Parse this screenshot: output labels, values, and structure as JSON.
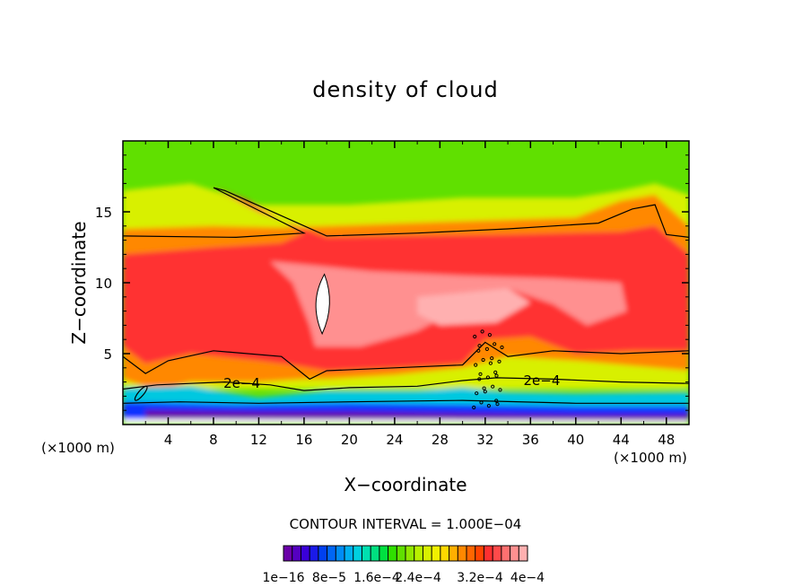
{
  "chart_data": {
    "type": "heatmap",
    "title": "density of cloud",
    "xlabel": "X−coordinate",
    "ylabel": "Z−coordinate",
    "x_unit_left": "(×1000 m)",
    "x_unit_right": "(×1000 m)",
    "xlim": [
      0,
      50
    ],
    "ylim": [
      0,
      20
    ],
    "x_ticks": [
      4,
      8,
      12,
      16,
      20,
      24,
      28,
      32,
      36,
      40,
      44,
      48
    ],
    "y_ticks": [
      5,
      10,
      15
    ],
    "x_tick_labels": [
      "4",
      "8",
      "12",
      "16",
      "20",
      "24",
      "28",
      "32",
      "36",
      "40",
      "44",
      "48"
    ],
    "y_tick_labels": [
      "5",
      "10",
      "15"
    ],
    "contour_interval": "CONTOUR INTERVAL = 1.000E−04",
    "contour_labels": [
      {
        "text": "2e−4",
        "x": 10.5,
        "z": 2.9
      },
      {
        "text": "2e−4",
        "x": 37.0,
        "z": 3.1
      }
    ],
    "colorbar": {
      "labels": [
        "1e−16",
        "8e−5",
        "1.6e−4",
        "2.4e−4",
        "3.2e−4",
        "4e−4"
      ],
      "min": 0,
      "max": 0.0004,
      "colors": [
        "#6a00a8",
        "#5500c0",
        "#3a00d8",
        "#1a1ae8",
        "#0040f0",
        "#0066f5",
        "#008cf5",
        "#00b0f0",
        "#00d0e0",
        "#00e0b0",
        "#00e080",
        "#00e040",
        "#30e000",
        "#60e000",
        "#90e800",
        "#b8f000",
        "#d8f000",
        "#f0f000",
        "#ffd800",
        "#ffb000",
        "#ff8800",
        "#ff6600",
        "#ff4400",
        "#ff3030",
        "#ff4a4a",
        "#ff7070",
        "#ff9090",
        "#ffb0b0"
      ]
    },
    "colors": {
      "low": "#5500c0",
      "green": "#60e000",
      "yellow": "#d8f000",
      "orange": "#ff8800",
      "red": "#ff3030",
      "pink": "#ff9090",
      "peak": "#ffb0b0"
    }
  }
}
